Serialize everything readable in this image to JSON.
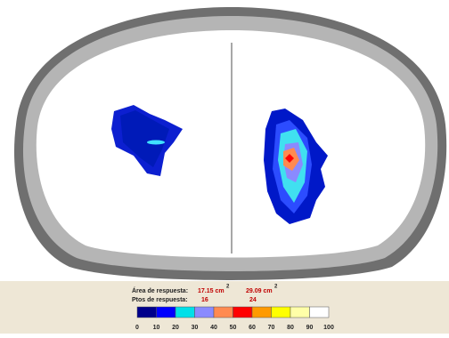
{
  "legend": {
    "area": {
      "label": "Área de respuesta:",
      "left": {
        "value": "17.15 cm",
        "sup": "2"
      },
      "right": {
        "value": "29.09 cm",
        "sup": "2"
      }
    },
    "points": {
      "label": "Ptos de respuesta:",
      "left": "16",
      "right": "24"
    },
    "scale": {
      "ticks": [
        0,
        10,
        20,
        30,
        40,
        50,
        60,
        70,
        80,
        90,
        100
      ],
      "colors": [
        "#00008b",
        "#0000ff",
        "#00e0e8",
        "#8a8aff",
        "#ff8a50",
        "#ff0000",
        "#ff9a00",
        "#ffff00",
        "#ffffa8",
        "#ffffff"
      ]
    }
  }
}
